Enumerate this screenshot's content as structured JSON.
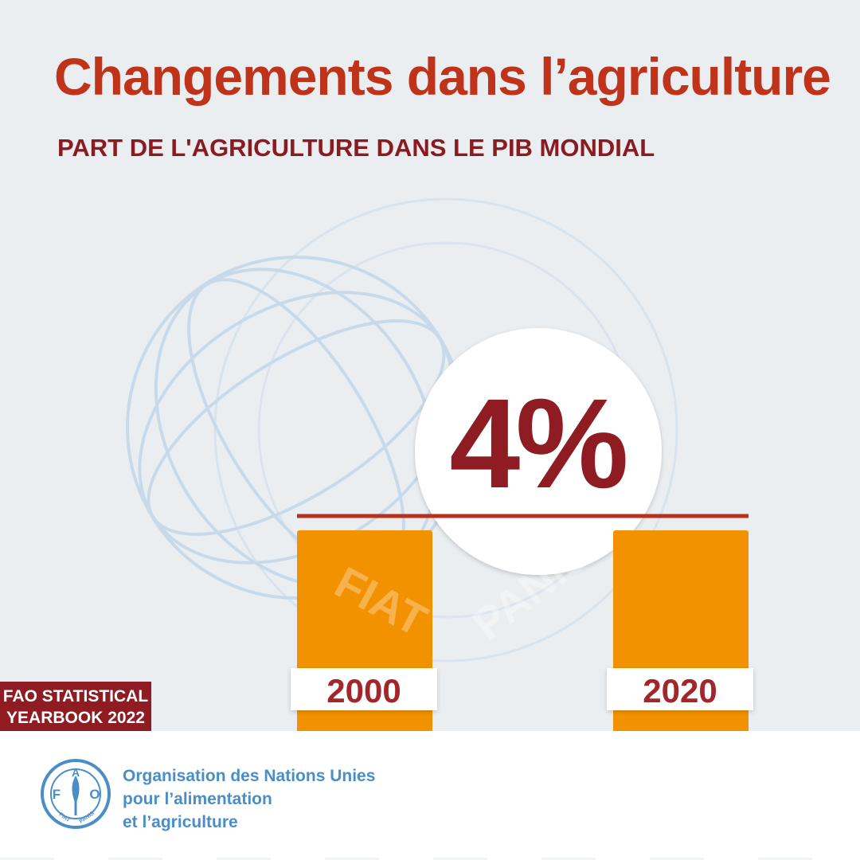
{
  "title": "Changements dans l’agriculture",
  "subtitle": "PART DE L'AGRICULTURE DANS LE PIB MONDIAL",
  "badge": {
    "line1": "FAO STATISTICAL",
    "line2": "YEARBOOK 2022"
  },
  "organization": {
    "line1": "Organisation des Nations Unies",
    "line2": "pour l’alimentation",
    "line3": "et l’agriculture"
  },
  "logo": {
    "letters": [
      "F",
      "A",
      "O"
    ],
    "motto": [
      "FIAT",
      "PANIS"
    ]
  },
  "watermark": {
    "motto": [
      "FIAT",
      "PANIS"
    ]
  },
  "chart_data": {
    "type": "bar",
    "categories": [
      "2000",
      "2020"
    ],
    "values": [
      4,
      4
    ],
    "unit": "%",
    "annotation": "4%"
  },
  "colors": {
    "title": "#c0331b",
    "subtitle": "#8a1b21",
    "bar": "#f39200",
    "accent_line": "#b8321b",
    "badge": "#8e1c22",
    "org_text": "#4a8ec7",
    "background": "#ebeef1",
    "watermark": "#c5d8ea"
  }
}
